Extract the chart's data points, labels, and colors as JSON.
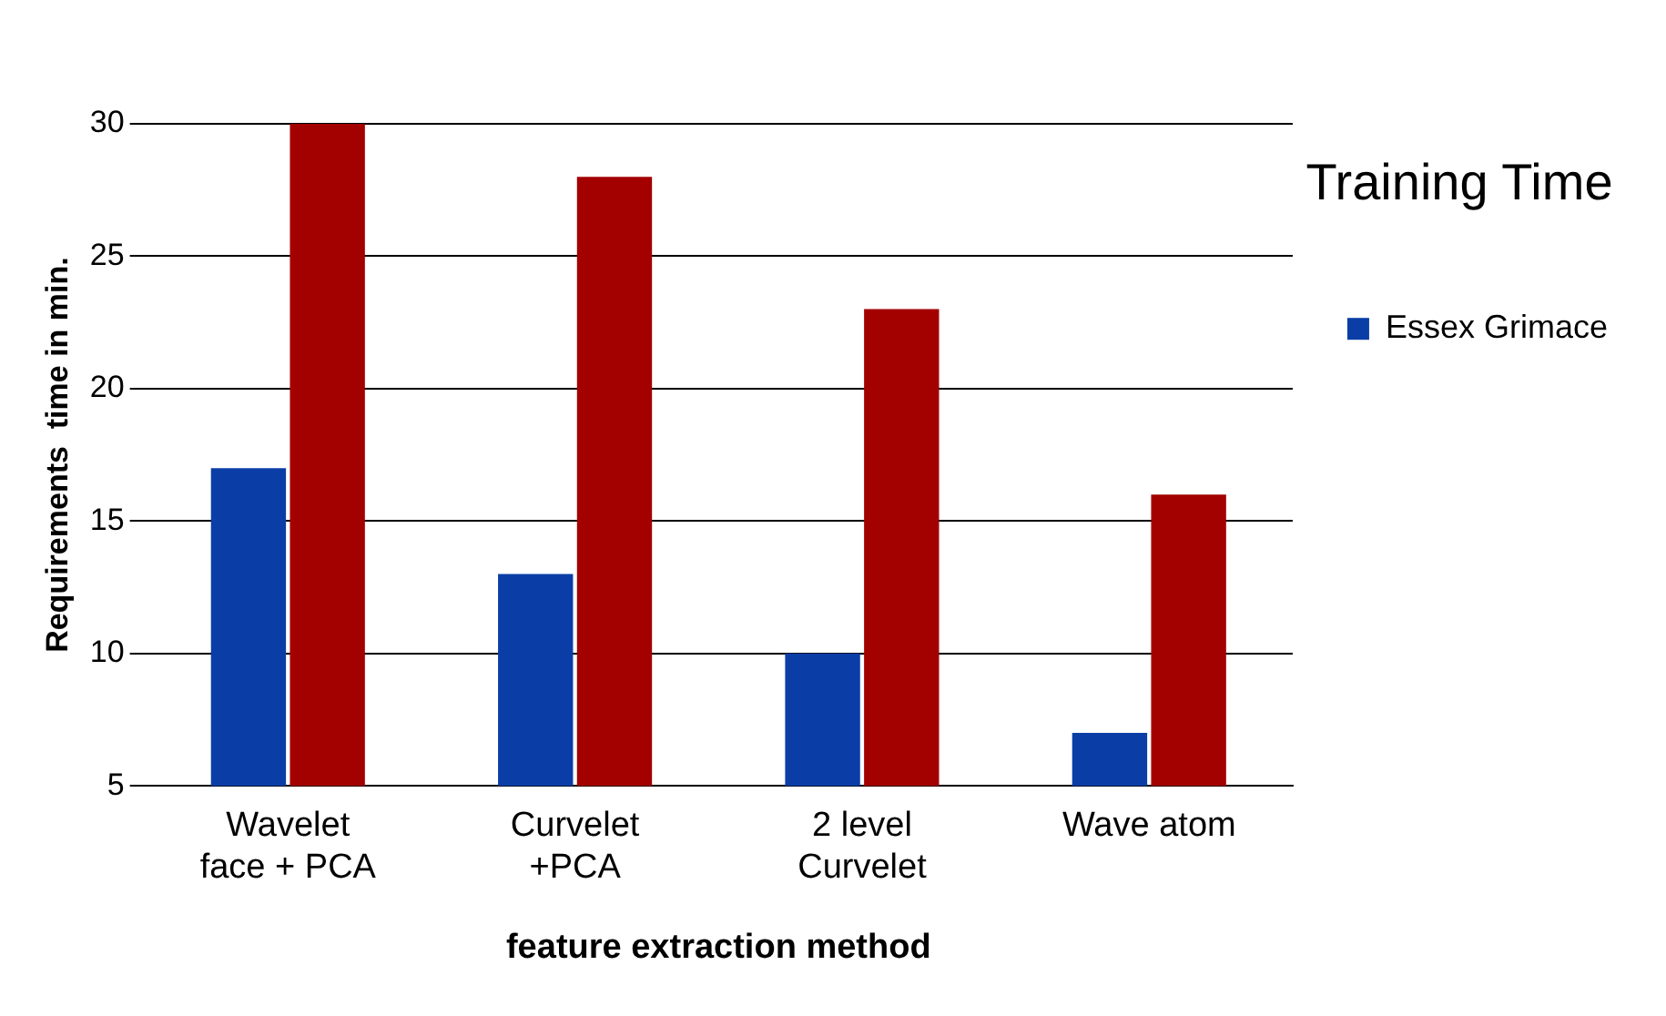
{
  "chart_data": {
    "type": "bar",
    "categories": [
      "Wavelet face + PCA",
      "Curvelet +PCA",
      "2 level Curvelet",
      "Wave atom"
    ],
    "series": [
      {
        "name": "Essex Grimace",
        "color": "#0a3ea6",
        "values": [
          17,
          13,
          10,
          7
        ]
      },
      {
        "color": "#a30000",
        "values": [
          30,
          28,
          23,
          16
        ]
      }
    ],
    "xlabel": "feature extraction method",
    "ylabel": "Requirements  time in min.",
    "legend_title": "Training Time",
    "ylim": [
      5,
      30
    ],
    "yticks": [
      5,
      10,
      15,
      20,
      25,
      30
    ],
    "grid": "y",
    "legend": "right"
  }
}
